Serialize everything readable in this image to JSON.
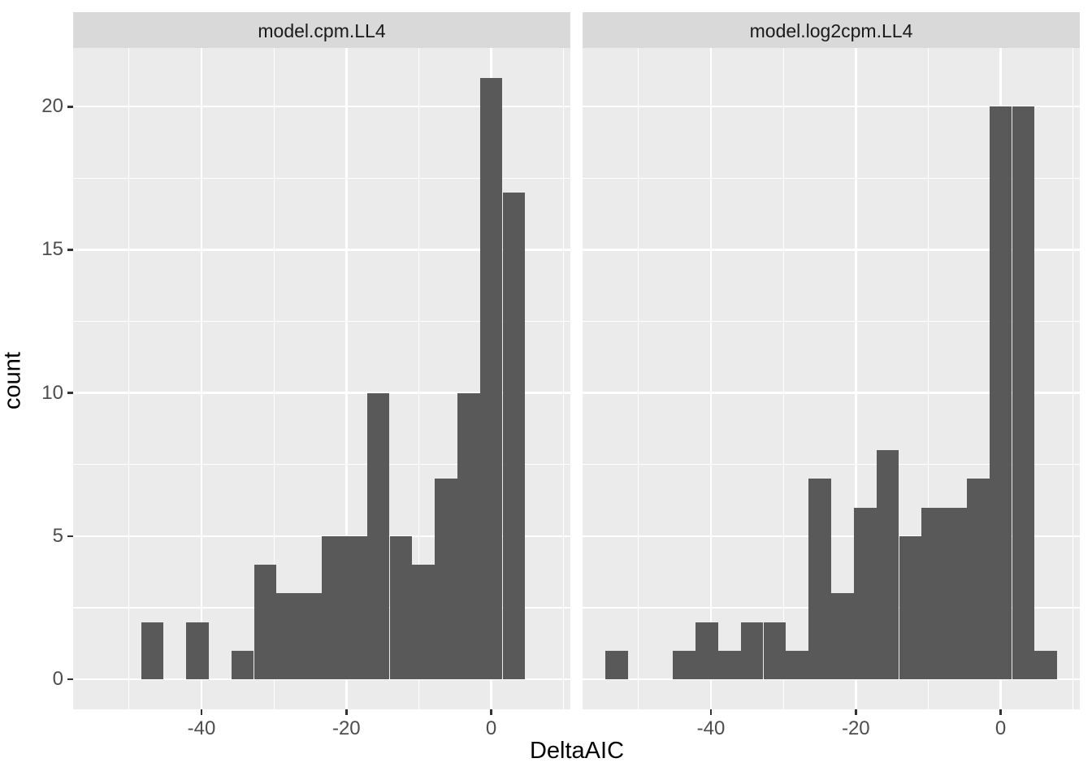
{
  "chart_data": {
    "type": "bar",
    "subtype": "faceted-histogram",
    "title": "",
    "xlabel": "DeltaAIC",
    "ylabel": "count",
    "x_major_ticks": [
      -40,
      -20,
      0
    ],
    "x_minor_gridlines": [
      -50,
      -30,
      -10,
      10
    ],
    "y_major_ticks": [
      0,
      5,
      10,
      15,
      20
    ],
    "y_minor_gridlines": [
      2.5,
      7.5,
      12.5,
      17.5
    ],
    "xlim": [
      -57.72,
      10.92
    ],
    "ylim": [
      -1.05,
      22.05
    ],
    "bin_start": -54.6,
    "bin_width": 3.12,
    "grid": "on",
    "legend": "none",
    "facets": [
      {
        "label": "model.cpm.LL4",
        "counts": [
          0,
          0,
          2,
          0,
          2,
          0,
          1,
          4,
          3,
          3,
          5,
          5,
          10,
          5,
          4,
          7,
          10,
          21,
          17,
          0
        ]
      },
      {
        "label": "model.log2cpm.LL4",
        "counts": [
          1,
          0,
          0,
          1,
          2,
          1,
          2,
          2,
          1,
          7,
          3,
          6,
          8,
          5,
          6,
          6,
          7,
          20,
          20,
          1
        ]
      }
    ]
  },
  "style": {
    "bar_color": "#595959",
    "panel_background": "#EBEBEB",
    "strip_background": "#D9D9D9",
    "gridline_color": "#FFFFFF",
    "tick_mark_color": "#333333",
    "tick_label_color": "#4D4D4D",
    "strip_text_color": "#1A1A1A",
    "axis_title_color": "#000000"
  }
}
